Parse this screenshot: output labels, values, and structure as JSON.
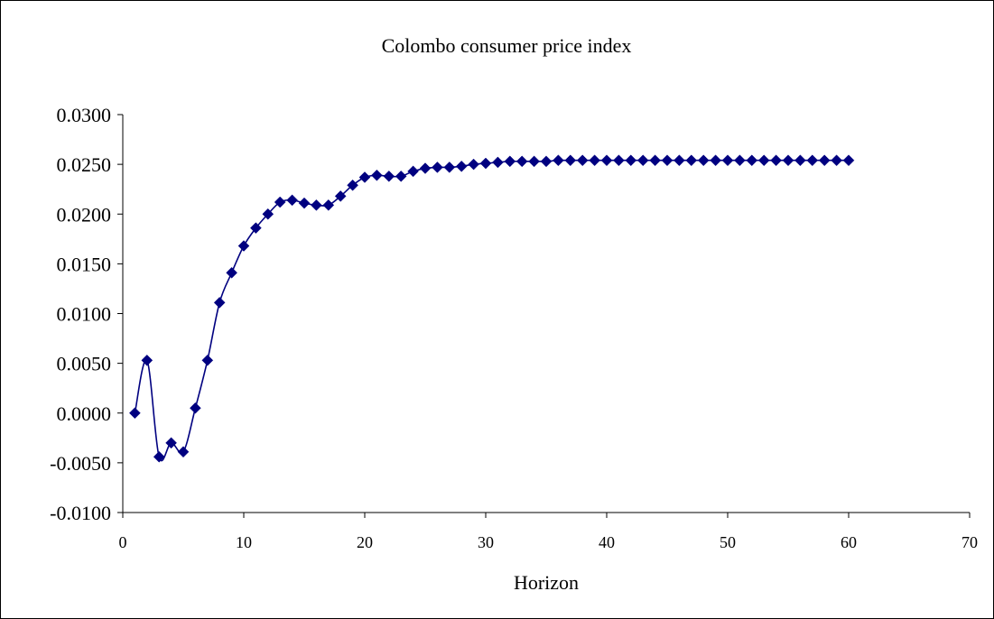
{
  "chart_data": {
    "type": "line",
    "title": "Colombo consumer price index",
    "xlabel": "Horizon",
    "ylabel": "",
    "xlim": [
      0,
      70
    ],
    "ylim": [
      -0.01,
      0.03
    ],
    "x_ticks": [
      "0",
      "10",
      "20",
      "30",
      "40",
      "50",
      "60",
      "70"
    ],
    "y_ticks": [
      "-0.0100",
      "-0.0050",
      "0.0000",
      "0.0050",
      "0.0100",
      "0.0150",
      "0.0200",
      "0.0250",
      "0.0300"
    ],
    "grid": false,
    "legend": "none",
    "series": [
      {
        "color": "#000080",
        "marker": "diamond",
        "smooth": true,
        "x": [
          1,
          2,
          3,
          4,
          5,
          6,
          7,
          8,
          9,
          10,
          11,
          12,
          13,
          14,
          15,
          16,
          17,
          18,
          19,
          20,
          21,
          22,
          23,
          24,
          25,
          26,
          27,
          28,
          29,
          30,
          31,
          32,
          33,
          34,
          35,
          36,
          37,
          38,
          39,
          40,
          41,
          42,
          43,
          44,
          45,
          46,
          47,
          48,
          49,
          50,
          51,
          52,
          53,
          54,
          55,
          56,
          57,
          58,
          59,
          60
        ],
        "values": [
          0.0,
          0.0053,
          -0.0044,
          -0.003,
          -0.0039,
          0.0005,
          0.0053,
          0.0111,
          0.0141,
          0.0168,
          0.0186,
          0.02,
          0.0212,
          0.0214,
          0.0211,
          0.0209,
          0.0209,
          0.0218,
          0.0229,
          0.0237,
          0.0239,
          0.0238,
          0.0238,
          0.0243,
          0.0246,
          0.0247,
          0.0247,
          0.0248,
          0.025,
          0.0251,
          0.0252,
          0.0253,
          0.0253,
          0.0253,
          0.0253,
          0.0254,
          0.0254,
          0.0254,
          0.0254,
          0.0254,
          0.0254,
          0.0254,
          0.0254,
          0.0254,
          0.0254,
          0.0254,
          0.0254,
          0.0254,
          0.0254,
          0.0254,
          0.0254,
          0.0254,
          0.0254,
          0.0254,
          0.0254,
          0.0254,
          0.0254,
          0.0254,
          0.0254,
          0.0254
        ]
      }
    ]
  }
}
